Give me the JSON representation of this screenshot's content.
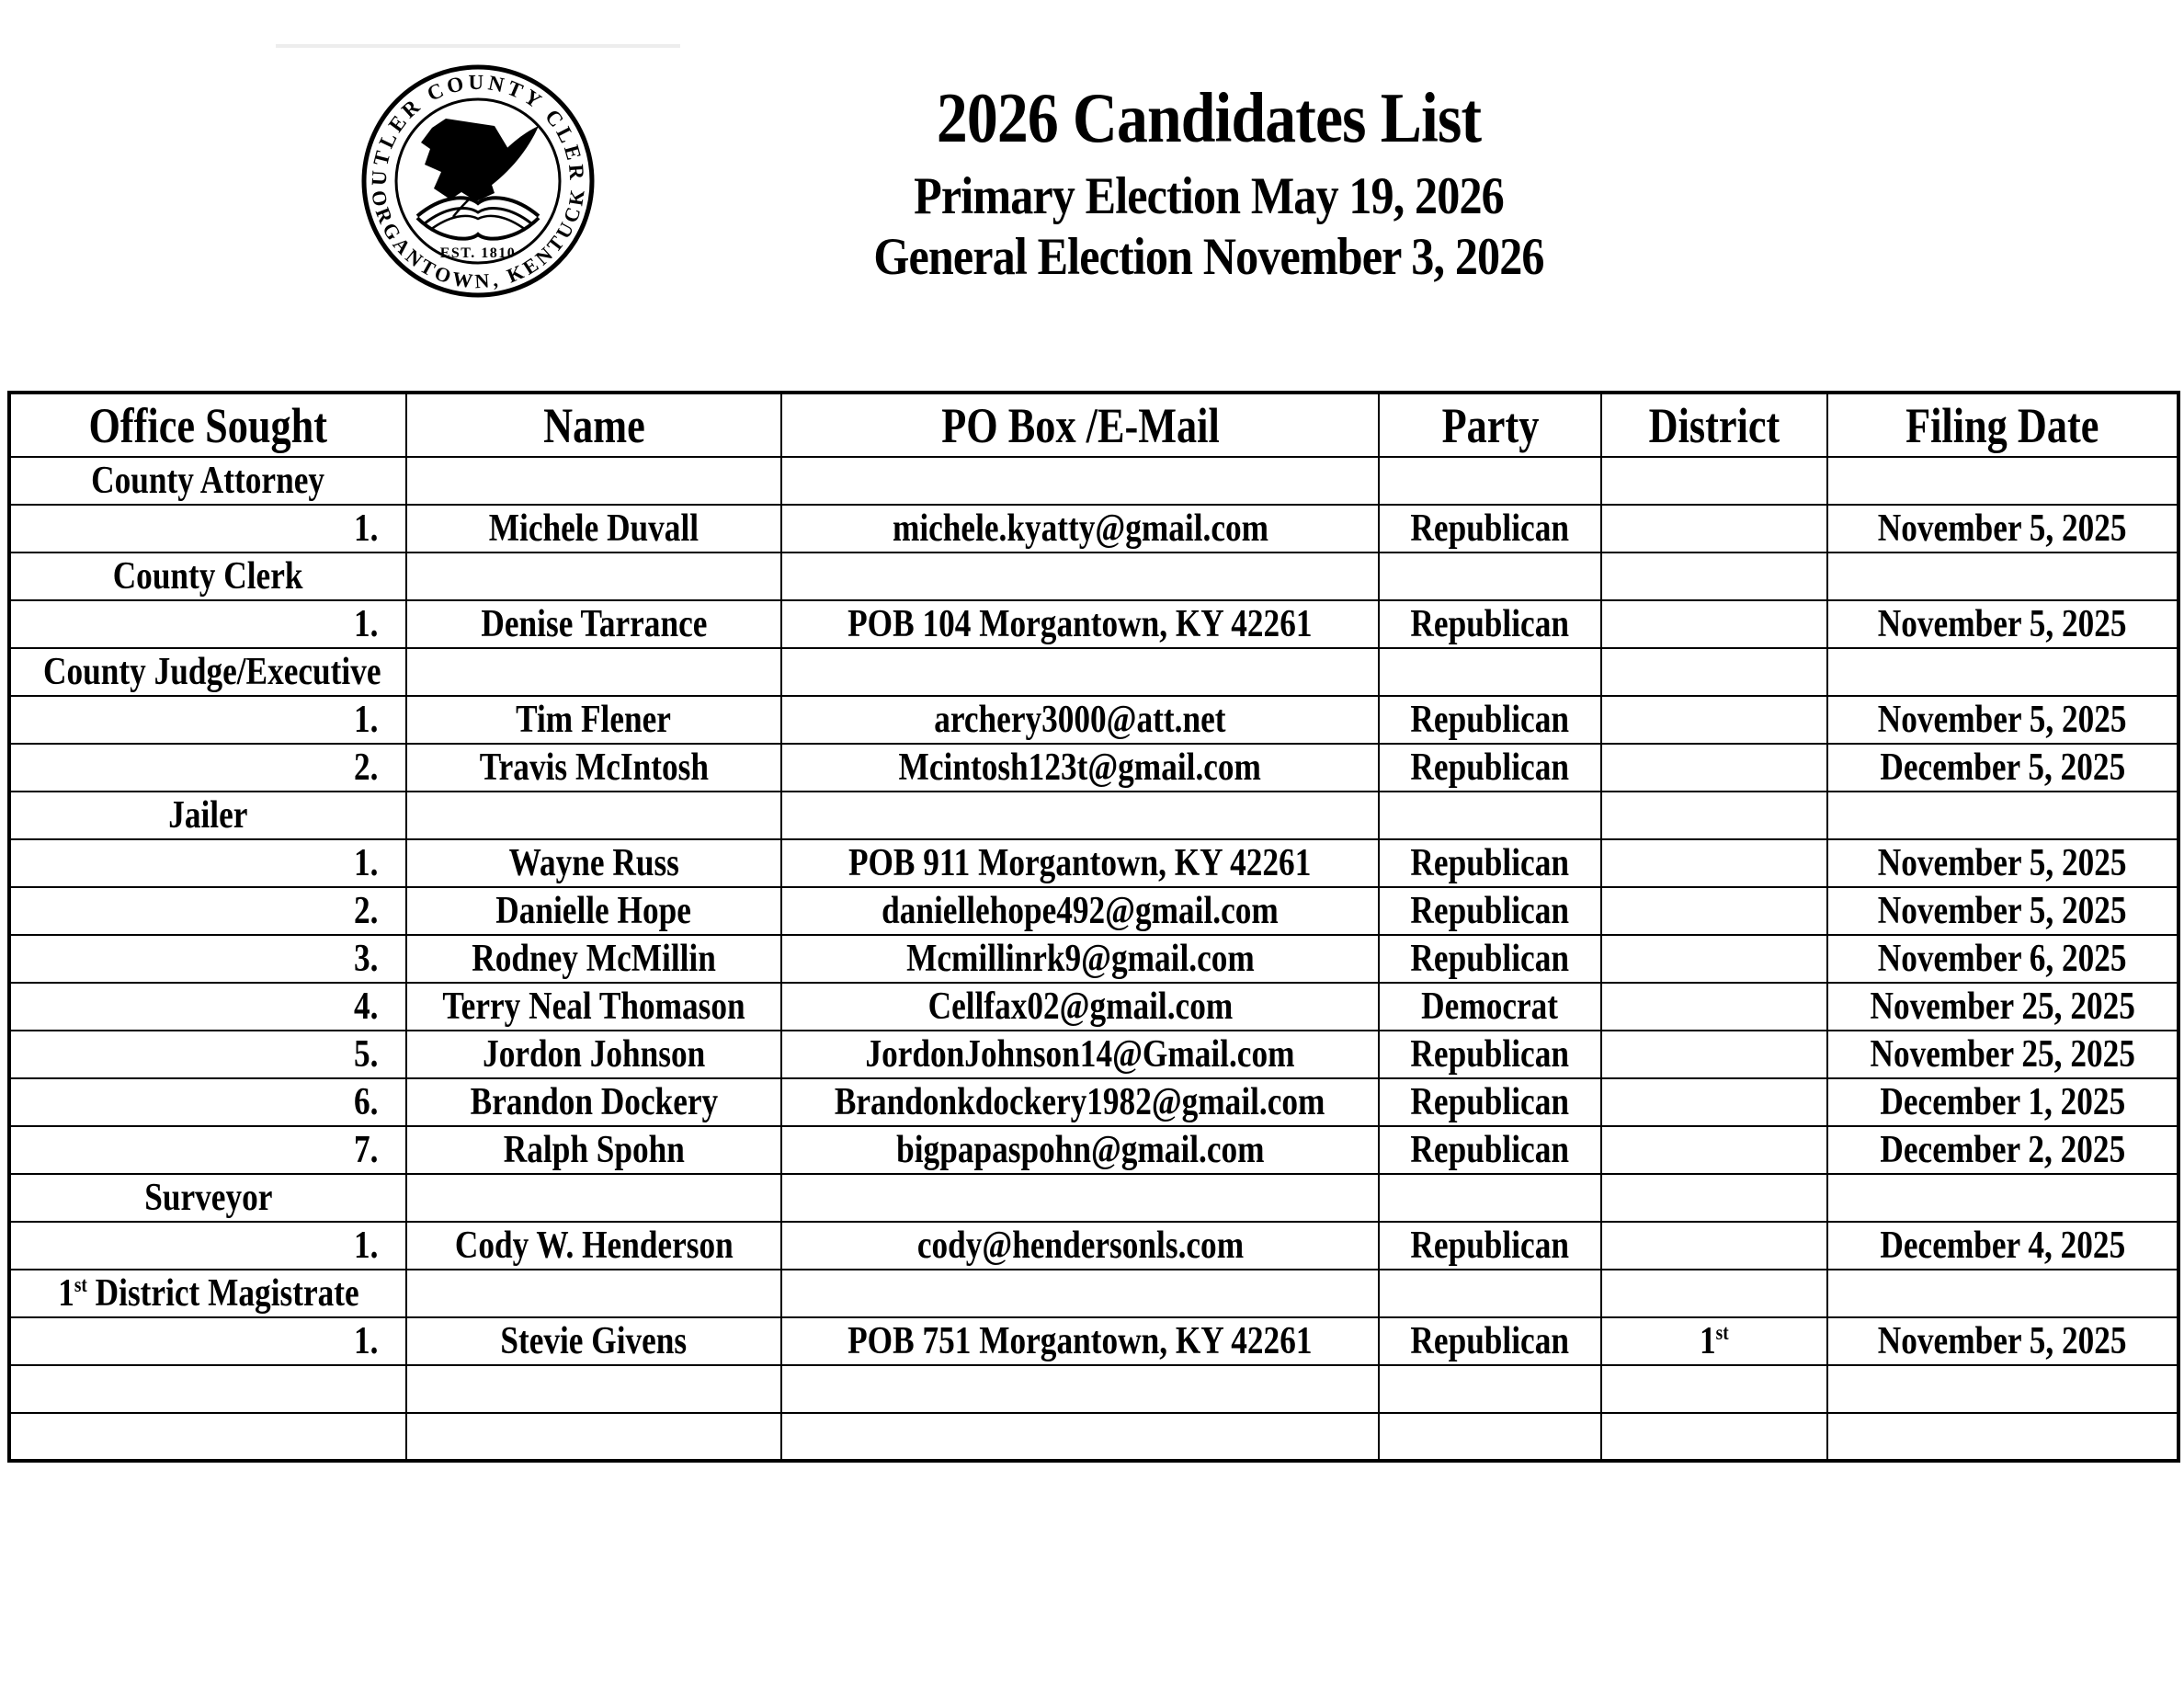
{
  "colors": {
    "ink": "#000000",
    "paper": "#ffffff",
    "artifact_line": "#ededed"
  },
  "seal": {
    "top_text": "BUTLER COUNTY CLERK",
    "bottom_text": "MORGANTOWN, KENTUCKY",
    "est_text": "EST. 1810"
  },
  "header": {
    "title": "2026 Candidates List",
    "subtitle_primary": "Primary Election May 19, 2026",
    "subtitle_general": "General Election November 3, 2026"
  },
  "table": {
    "headers": [
      "Office Sought",
      "Name",
      "PO Box /E-Mail",
      "Party",
      "District",
      "Filing Date"
    ],
    "rows": [
      {
        "type": "category",
        "office": "County Attorney"
      },
      {
        "type": "candidate",
        "num": "1.",
        "name": "Michele Duvall",
        "contact": "michele.kyatty@gmail.com",
        "party": "Republican",
        "district": "",
        "filing_date": "November 5, 2025"
      },
      {
        "type": "category",
        "office": "County Clerk"
      },
      {
        "type": "candidate",
        "num": "1.",
        "name": "Denise Tarrance",
        "contact": "POB 104 Morgantown, KY 42261",
        "party": "Republican",
        "district": "",
        "filing_date": "November 5, 2025"
      },
      {
        "type": "category",
        "office": "County Judge/Executive"
      },
      {
        "type": "candidate",
        "num": "1.",
        "name": "Tim Flener",
        "contact": "archery3000@att.net",
        "party": "Republican",
        "district": "",
        "filing_date": "November 5, 2025"
      },
      {
        "type": "candidate",
        "num": "2.",
        "name": "Travis McIntosh",
        "contact": "Mcintosh123t@gmail.com",
        "party": "Republican",
        "district": "",
        "filing_date": "December 5, 2025"
      },
      {
        "type": "category",
        "office": "Jailer"
      },
      {
        "type": "candidate",
        "num": "1.",
        "name": "Wayne Russ",
        "contact": "POB 911 Morgantown, KY 42261",
        "party": "Republican",
        "district": "",
        "filing_date": "November 5, 2025"
      },
      {
        "type": "candidate",
        "num": "2.",
        "name": "Danielle Hope",
        "contact": "daniellehope492@gmail.com",
        "party": "Republican",
        "district": "",
        "filing_date": "November 5, 2025"
      },
      {
        "type": "candidate",
        "num": "3.",
        "name": "Rodney McMillin",
        "contact": "Mcmillinrk9@gmail.com",
        "party": "Republican",
        "district": "",
        "filing_date": "November 6, 2025"
      },
      {
        "type": "candidate",
        "num": "4.",
        "name": "Terry Neal Thomason",
        "contact": "Cellfax02@gmail.com",
        "party": "Democrat",
        "district": "",
        "filing_date": "November 25, 2025"
      },
      {
        "type": "candidate",
        "num": "5.",
        "name": "Jordon Johnson",
        "contact": "JordonJohnson14@Gmail.com",
        "party": "Republican",
        "district": "",
        "filing_date": "November 25, 2025"
      },
      {
        "type": "candidate",
        "num": "6.",
        "name": "Brandon Dockery",
        "contact": "Brandonkdockery1982@gmail.com",
        "party": "Republican",
        "district": "",
        "filing_date": "December 1, 2025"
      },
      {
        "type": "candidate",
        "num": "7.",
        "name": "Ralph Spohn",
        "contact": "bigpapaspohn@gmail.com",
        "party": "Republican",
        "district": "",
        "filing_date": "December 2, 2025"
      },
      {
        "type": "category",
        "office": "Surveyor"
      },
      {
        "type": "candidate",
        "num": "1.",
        "name": "Cody W. Henderson",
        "contact": "cody@hendersonls.com",
        "party": "Republican",
        "district": "",
        "filing_date": "December 4, 2025"
      },
      {
        "type": "category",
        "office": "1st District Magistrate",
        "office_parts": {
          "pre": "1",
          "sup": "st",
          "post": " District Magistrate"
        }
      },
      {
        "type": "candidate",
        "num": "1.",
        "name": "Stevie Givens",
        "contact": "POB 751 Morgantown, KY 42261",
        "party": "Republican",
        "district": "1st",
        "district_parts": {
          "pre": "1",
          "sup": "st",
          "post": ""
        },
        "filing_date": "November 5, 2025"
      },
      {
        "type": "empty"
      },
      {
        "type": "empty"
      }
    ]
  }
}
